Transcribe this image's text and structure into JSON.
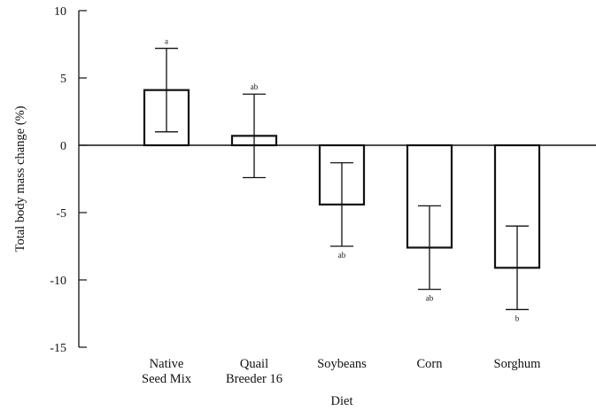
{
  "chart_data": {
    "type": "bar",
    "xlabel": "Diet",
    "ylabel": "Total body mass change (%)",
    "ylim": [
      -15,
      10
    ],
    "yticks": [
      10,
      5,
      0,
      -5,
      -10,
      -15
    ],
    "ytick_labels": [
      "10",
      "5",
      "0",
      "-5",
      "-10",
      "-15"
    ],
    "categories": [
      [
        "Native",
        "Seed Mix"
      ],
      [
        "Quail",
        "Breeder 16"
      ],
      [
        "Soybeans"
      ],
      [
        "Corn"
      ],
      [
        "Sorghum"
      ]
    ],
    "values": [
      4.1,
      0.7,
      -4.4,
      -7.6,
      -9.1
    ],
    "errors": [
      3.1,
      3.1,
      3.1,
      3.1,
      3.1
    ],
    "significance_labels": [
      "a",
      "ab",
      "ab",
      "ab",
      "b"
    ],
    "grid": false,
    "legend": "none",
    "bar_fill": "#ffffff",
    "stroke_color": "#111111"
  }
}
